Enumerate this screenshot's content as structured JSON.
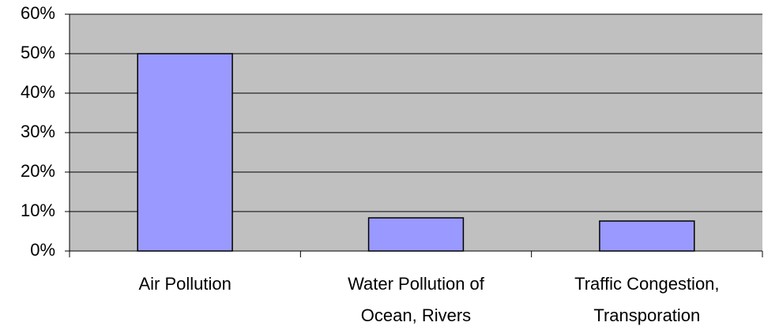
{
  "chart_data": {
    "type": "bar",
    "categories": [
      "Air Pollution",
      "Water Pollution of Ocean, Rivers",
      "Traffic Congestion, Transporation"
    ],
    "values": [
      50,
      8.4,
      7.6
    ],
    "color": "#9999ff",
    "ylim": [
      0,
      60
    ],
    "yticks": [
      {
        "value": 0,
        "label": "0%"
      },
      {
        "value": 10,
        "label": "10%"
      },
      {
        "value": 20,
        "label": "20%"
      },
      {
        "value": 30,
        "label": "30%"
      },
      {
        "value": 40,
        "label": "40%"
      },
      {
        "value": 50,
        "label": "50%"
      },
      {
        "value": 60,
        "label": "60%"
      }
    ],
    "grid": true
  }
}
